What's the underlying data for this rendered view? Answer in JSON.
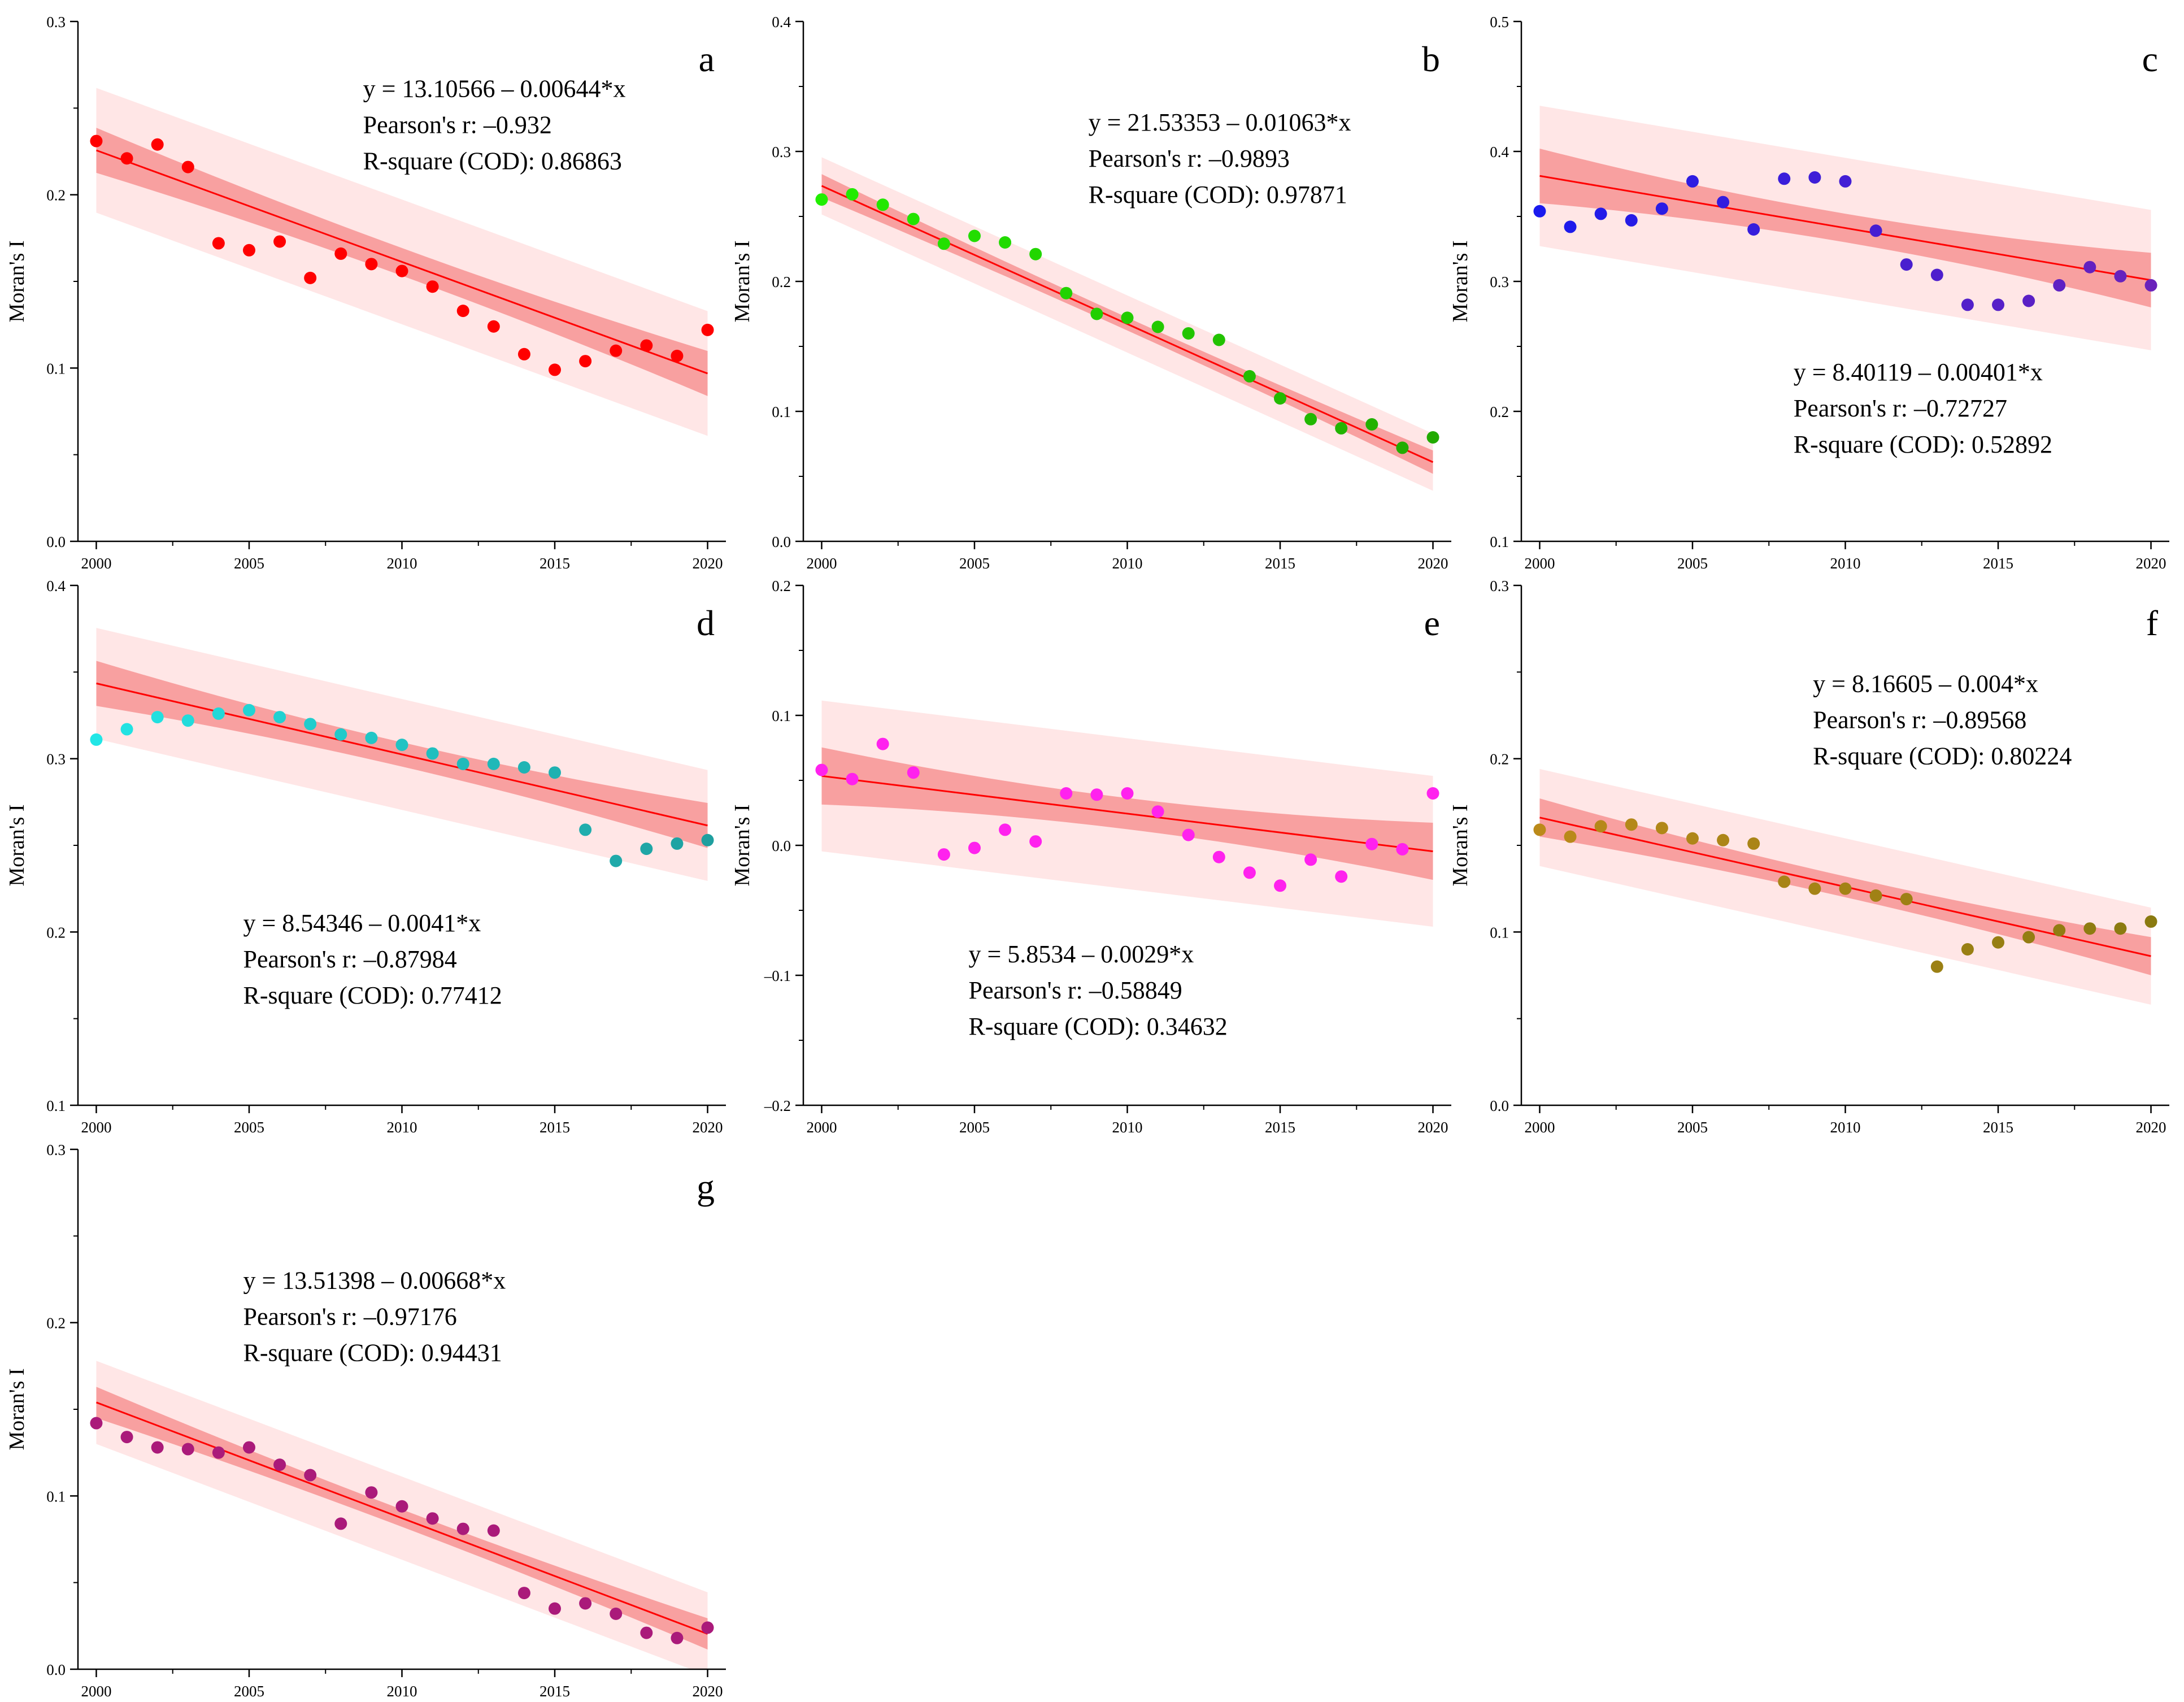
{
  "chart_data": [
    {
      "id": "a",
      "type": "scatter",
      "letter": "a",
      "ylabel": "Moran's I",
      "ylim": [
        0.0,
        0.3
      ],
      "yticks": [
        "0.0",
        "0.1",
        "0.2",
        "0.3"
      ],
      "xlim": [
        1999.4,
        2020.6
      ],
      "xticks": [
        "2000",
        "2005",
        "2010",
        "2015",
        "2020"
      ],
      "point_color": [
        "#ff0000",
        "#ff0000"
      ],
      "x": [
        2000,
        2001,
        2002,
        2003,
        2004,
        2005,
        2006,
        2007,
        2008,
        2009,
        2010,
        2011,
        2012,
        2013,
        2014,
        2015,
        2016,
        2017,
        2018,
        2019,
        2020
      ],
      "values": [
        0.231,
        0.221,
        0.229,
        0.216,
        0.172,
        0.168,
        0.173,
        0.152,
        0.166,
        0.16,
        0.156,
        0.147,
        0.133,
        0.124,
        0.108,
        0.099,
        0.104,
        0.11,
        0.113,
        0.107,
        0.122
      ],
      "fit": {
        "intercept": 13.10566,
        "slope": -0.00644
      },
      "confidence_half_width": [
        0.013,
        0.008,
        0.013
      ],
      "prediction_half_width": 0.036,
      "annotation": [
        "y = 13.10566 – 0.00644*x",
        "Pearson's r: –0.932",
        "R-square (COD): 0.86863"
      ]
    },
    {
      "id": "b",
      "type": "scatter",
      "letter": "b",
      "ylabel": "Moran's I",
      "ylim": [
        0.0,
        0.4
      ],
      "yticks": [
        "0.0",
        "0.1",
        "0.2",
        "0.3",
        "0.4"
      ],
      "xlim": [
        1999.4,
        2020.6
      ],
      "xticks": [
        "2000",
        "2005",
        "2010",
        "2015",
        "2020"
      ],
      "point_color": [
        "#22ee00",
        "#22aa00"
      ],
      "x": [
        2000,
        2001,
        2002,
        2003,
        2004,
        2005,
        2006,
        2007,
        2008,
        2009,
        2010,
        2011,
        2012,
        2013,
        2014,
        2015,
        2016,
        2017,
        2018,
        2019,
        2020
      ],
      "values": [
        0.263,
        0.267,
        0.259,
        0.248,
        0.229,
        0.235,
        0.23,
        0.221,
        0.191,
        0.175,
        0.172,
        0.165,
        0.16,
        0.155,
        0.127,
        0.11,
        0.094,
        0.087,
        0.09,
        0.072,
        0.08
      ],
      "fit": {
        "intercept": 21.53353,
        "slope": -0.01063
      },
      "confidence_half_width": [
        0.009,
        0.005,
        0.009
      ],
      "prediction_half_width": 0.022,
      "annotation": [
        "y = 21.53353 – 0.01063*x",
        "Pearson's r: –0.9893",
        "R-square (COD): 0.97871"
      ]
    },
    {
      "id": "c",
      "type": "scatter",
      "letter": "c",
      "ylabel": "Moran's I",
      "ylim": [
        0.1,
        0.5
      ],
      "yticks": [
        "0.1",
        "0.2",
        "0.3",
        "0.4",
        "0.5"
      ],
      "xlim": [
        1999.4,
        2020.6
      ],
      "xticks": [
        "2000",
        "2005",
        "2010",
        "2015",
        "2020"
      ],
      "point_color": [
        "#1a1aee",
        "#6a22bb"
      ],
      "x": [
        2000,
        2001,
        2002,
        2003,
        2004,
        2005,
        2006,
        2007,
        2008,
        2009,
        2010,
        2011,
        2012,
        2013,
        2014,
        2015,
        2016,
        2017,
        2018,
        2019,
        2020
      ],
      "values": [
        0.354,
        0.342,
        0.352,
        0.347,
        0.356,
        0.377,
        0.361,
        0.34,
        0.379,
        0.38,
        0.377,
        0.339,
        0.313,
        0.305,
        0.282,
        0.282,
        0.285,
        0.297,
        0.311,
        0.304,
        0.297
      ],
      "fit": {
        "intercept": 8.40119,
        "slope": -0.00401
      },
      "confidence_half_width": [
        0.021,
        0.011,
        0.021
      ],
      "prediction_half_width": 0.054,
      "annotation": [
        "y = 8.40119 – 0.00401*x",
        "Pearson's r: –0.72727",
        "R-square (COD): 0.52892"
      ]
    },
    {
      "id": "d",
      "type": "scatter",
      "letter": "d",
      "ylabel": "Moran's I",
      "ylim": [
        0.1,
        0.4
      ],
      "yticks": [
        "0.1",
        "0.2",
        "0.3",
        "0.4"
      ],
      "xlim": [
        1999.4,
        2020.6
      ],
      "xticks": [
        "2000",
        "2005",
        "2010",
        "2015",
        "2020"
      ],
      "point_color": [
        "#22e6e6",
        "#1f9f9f"
      ],
      "x": [
        2000,
        2001,
        2002,
        2003,
        2004,
        2005,
        2006,
        2007,
        2008,
        2009,
        2010,
        2011,
        2012,
        2013,
        2014,
        2015,
        2016,
        2017,
        2018,
        2019,
        2020
      ],
      "values": [
        0.311,
        0.317,
        0.324,
        0.322,
        0.326,
        0.328,
        0.324,
        0.32,
        0.314,
        0.312,
        0.308,
        0.303,
        0.297,
        0.297,
        0.295,
        0.292,
        0.259,
        0.241,
        0.248,
        0.251,
        0.253
      ],
      "fit": {
        "intercept": 8.54346,
        "slope": -0.0041
      },
      "confidence_half_width": [
        0.013,
        0.007,
        0.013
      ],
      "prediction_half_width": 0.032,
      "annotation": [
        "y = 8.54346 – 0.0041*x",
        "Pearson's r: –0.87984",
        "R-square (COD): 0.77412"
      ]
    },
    {
      "id": "e",
      "type": "scatter",
      "letter": "e",
      "ylabel": "Moran's I",
      "ylim": [
        -0.2,
        0.2
      ],
      "yticks": [
        "–0.2",
        "–0.1",
        "0.0",
        "0.1",
        "0.2"
      ],
      "xlim": [
        1999.4,
        2020.6
      ],
      "xticks": [
        "2000",
        "2005",
        "2010",
        "2015",
        "2020"
      ],
      "point_color": [
        "#ff22ee",
        "#ff22ee"
      ],
      "x": [
        2000,
        2001,
        2002,
        2003,
        2004,
        2005,
        2006,
        2007,
        2008,
        2009,
        2010,
        2011,
        2012,
        2013,
        2014,
        2015,
        2016,
        2017,
        2018,
        2019,
        2020
      ],
      "values": [
        0.058,
        0.051,
        0.078,
        0.056,
        -0.007,
        -0.002,
        0.012,
        0.003,
        0.04,
        0.039,
        0.04,
        0.026,
        0.008,
        -0.009,
        -0.021,
        -0.031,
        -0.011,
        -0.024,
        0.001,
        -0.003,
        0.04
      ],
      "fit": {
        "intercept": 5.8534,
        "slope": -0.0029
      },
      "confidence_half_width": [
        0.022,
        0.012,
        0.022
      ],
      "prediction_half_width": 0.058,
      "annotation": [
        "y = 5.8534 – 0.0029*x",
        "Pearson's r: –0.58849",
        "R-square (COD): 0.34632"
      ]
    },
    {
      "id": "f",
      "type": "scatter",
      "letter": "f",
      "ylabel": "Moran's I",
      "ylim": [
        0.0,
        0.3
      ],
      "yticks": [
        "0.0",
        "0.1",
        "0.2",
        "0.3"
      ],
      "xlim": [
        1999.4,
        2020.6
      ],
      "xticks": [
        "2000",
        "2005",
        "2010",
        "2015",
        "2020"
      ],
      "point_color": [
        "#bb8a1a",
        "#8a7a10"
      ],
      "x": [
        2000,
        2001,
        2002,
        2003,
        2004,
        2005,
        2006,
        2007,
        2008,
        2009,
        2010,
        2011,
        2012,
        2013,
        2014,
        2015,
        2016,
        2017,
        2018,
        2019,
        2020
      ],
      "values": [
        0.159,
        0.155,
        0.161,
        0.162,
        0.16,
        0.154,
        0.153,
        0.151,
        0.129,
        0.125,
        0.125,
        0.121,
        0.119,
        0.08,
        0.09,
        0.094,
        0.097,
        0.101,
        0.102,
        0.102,
        0.106
      ],
      "fit": {
        "intercept": 8.16605,
        "slope": -0.004
      },
      "confidence_half_width": [
        0.011,
        0.006,
        0.011
      ],
      "prediction_half_width": 0.028,
      "annotation": [
        "y = 8.16605 – 0.004*x",
        "Pearson's r: –0.89568",
        "R-square (COD): 0.80224"
      ]
    },
    {
      "id": "g",
      "type": "scatter",
      "letter": "g",
      "ylabel": "Moran's I",
      "ylim": [
        0.0,
        0.3
      ],
      "yticks": [
        "0.0",
        "0.1",
        "0.2",
        "0.3"
      ],
      "xlim": [
        1999.4,
        2020.6
      ],
      "xticks": [
        "2000",
        "2005",
        "2010",
        "2015",
        "2020"
      ],
      "point_color": [
        "#aa1a7a",
        "#aa1a7a"
      ],
      "x": [
        2000,
        2001,
        2002,
        2003,
        2004,
        2005,
        2006,
        2007,
        2008,
        2009,
        2010,
        2011,
        2012,
        2013,
        2014,
        2015,
        2016,
        2017,
        2018,
        2019,
        2020
      ],
      "values": [
        0.142,
        0.134,
        0.128,
        0.127,
        0.125,
        0.128,
        0.118,
        0.112,
        0.084,
        0.102,
        0.094,
        0.087,
        0.081,
        0.08,
        0.044,
        0.035,
        0.038,
        0.032,
        0.021,
        0.018,
        0.024
      ],
      "fit": {
        "intercept": 13.51398,
        "slope": -0.00668
      },
      "confidence_half_width": [
        0.009,
        0.005,
        0.009
      ],
      "prediction_half_width": 0.024,
      "annotation": [
        "y = 13.51398 – 0.00668*x",
        "Pearson's r: –0.97176",
        "R-square (COD): 0.94431"
      ]
    }
  ],
  "colors": {
    "fit_line": "#ff0000",
    "confidence_band": "#f8a0a0",
    "prediction_band": "#ffe6e6",
    "axis": "#000000"
  }
}
